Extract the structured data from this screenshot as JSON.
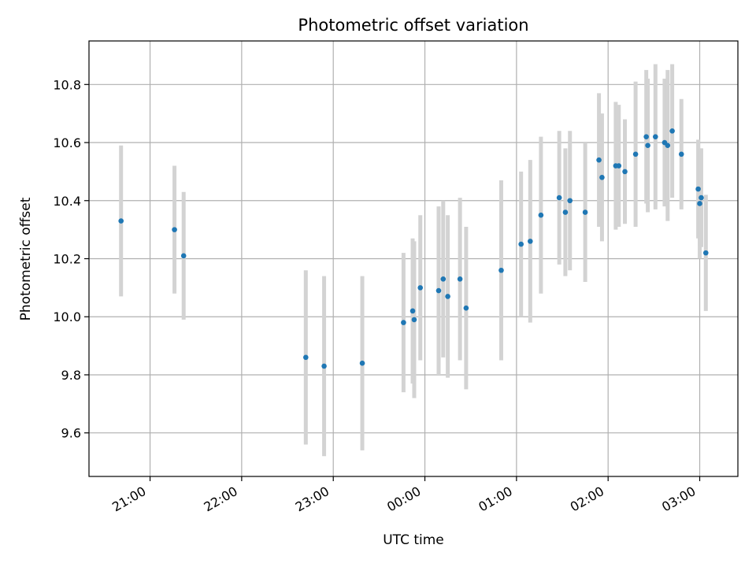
{
  "chart_data": {
    "type": "scatter",
    "title": "Photometric offset variation",
    "xlabel": "UTC time",
    "ylabel": "Photometric offset",
    "x_axis": "time",
    "xlim": [
      "20:20",
      "03:25"
    ],
    "ylim": [
      9.45,
      10.95
    ],
    "x_ticks": [
      "21:00",
      "22:00",
      "23:00",
      "00:00",
      "01:00",
      "02:00",
      "03:00"
    ],
    "y_ticks": [
      "9.6",
      "9.8",
      "10.0",
      "10.2",
      "10.4",
      "10.6",
      "10.8"
    ],
    "grid": true,
    "legend": "none",
    "colors": {
      "point": "#1f77b4",
      "error_bar": "#d3d3d3"
    },
    "points": [
      {
        "time": "20:41",
        "y": 10.33,
        "err": 0.26
      },
      {
        "time": "21:16",
        "y": 10.3,
        "err": 0.22
      },
      {
        "time": "21:22",
        "y": 10.21,
        "err": 0.22
      },
      {
        "time": "22:42",
        "y": 9.86,
        "err": 0.3
      },
      {
        "time": "22:54",
        "y": 9.83,
        "err": 0.31
      },
      {
        "time": "23:19",
        "y": 9.84,
        "err": 0.3
      },
      {
        "time": "23:46",
        "y": 9.98,
        "err": 0.24
      },
      {
        "time": "23:52",
        "y": 10.02,
        "err": 0.25
      },
      {
        "time": "23:53",
        "y": 9.99,
        "err": 0.27
      },
      {
        "time": "23:57",
        "y": 10.1,
        "err": 0.25
      },
      {
        "time": "00:09",
        "y": 10.09,
        "err": 0.29
      },
      {
        "time": "00:12",
        "y": 10.13,
        "err": 0.27
      },
      {
        "time": "00:15",
        "y": 10.07,
        "err": 0.28
      },
      {
        "time": "00:23",
        "y": 10.13,
        "err": 0.28
      },
      {
        "time": "00:27",
        "y": 10.03,
        "err": 0.28
      },
      {
        "time": "00:50",
        "y": 10.16,
        "err": 0.31
      },
      {
        "time": "01:03",
        "y": 10.25,
        "err": 0.25
      },
      {
        "time": "01:09",
        "y": 10.26,
        "err": 0.28
      },
      {
        "time": "01:16",
        "y": 10.35,
        "err": 0.27
      },
      {
        "time": "01:28",
        "y": 10.41,
        "err": 0.23
      },
      {
        "time": "01:32",
        "y": 10.36,
        "err": 0.22
      },
      {
        "time": "01:35",
        "y": 10.4,
        "err": 0.24
      },
      {
        "time": "01:45",
        "y": 10.36,
        "err": 0.24
      },
      {
        "time": "01:54",
        "y": 10.54,
        "err": 0.23
      },
      {
        "time": "01:56",
        "y": 10.48,
        "err": 0.22
      },
      {
        "time": "02:05",
        "y": 10.52,
        "err": 0.22
      },
      {
        "time": "02:07",
        "y": 10.52,
        "err": 0.21
      },
      {
        "time": "02:11",
        "y": 10.5,
        "err": 0.18
      },
      {
        "time": "02:18",
        "y": 10.56,
        "err": 0.25
      },
      {
        "time": "02:25",
        "y": 10.62,
        "err": 0.23
      },
      {
        "time": "02:26",
        "y": 10.59,
        "err": 0.23
      },
      {
        "time": "02:31",
        "y": 10.62,
        "err": 0.25
      },
      {
        "time": "02:37",
        "y": 10.6,
        "err": 0.22
      },
      {
        "time": "02:39",
        "y": 10.59,
        "err": 0.26
      },
      {
        "time": "02:42",
        "y": 10.64,
        "err": 0.23
      },
      {
        "time": "02:48",
        "y": 10.56,
        "err": 0.19
      },
      {
        "time": "02:59",
        "y": 10.44,
        "err": 0.17
      },
      {
        "time": "03:00",
        "y": 10.39,
        "err": 0.19
      },
      {
        "time": "03:01",
        "y": 10.41,
        "err": 0.17
      },
      {
        "time": "03:04",
        "y": 10.22,
        "err": 0.2
      }
    ]
  }
}
